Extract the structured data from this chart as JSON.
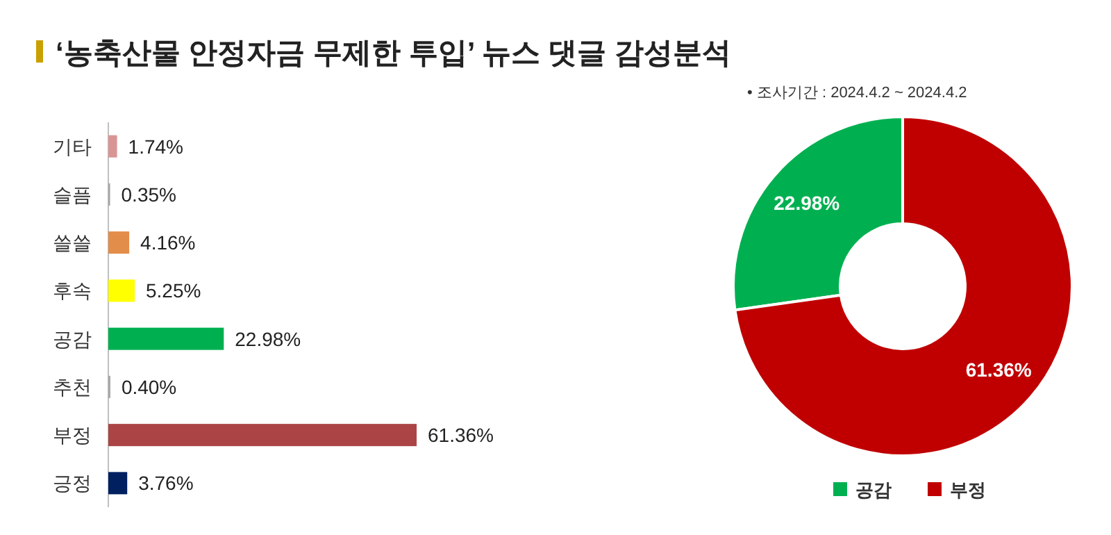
{
  "chart_data": [
    {
      "type": "bar",
      "orientation": "horizontal",
      "title": "‘농축산물 안정자금 무제한 투입’ 뉴스 댓글 감성분석",
      "categories": [
        "기타",
        "슬픔",
        "쓸쓸",
        "후속",
        "공감",
        "추천",
        "부정",
        "긍정"
      ],
      "values": [
        1.74,
        0.35,
        4.16,
        5.25,
        22.98,
        0.4,
        61.36,
        3.76
      ],
      "value_labels": [
        "1.74%",
        "0.35%",
        "4.16%",
        "5.25%",
        "22.98%",
        "0.40%",
        "61.36%",
        "3.76%"
      ],
      "colors": [
        "#d99594",
        "#a6a6a6",
        "#e38d4a",
        "#ffff00",
        "#00b050",
        "#a6a6a6",
        "#ab4545",
        "#002060"
      ]
    },
    {
      "type": "donut",
      "categories": [
        "공감",
        "부정"
      ],
      "values": [
        22.98,
        61.36
      ],
      "value_labels": [
        "22.98%",
        "61.36%"
      ],
      "colors": [
        "#00b050",
        "#c00000"
      ],
      "legend": "bottom",
      "annotations": [
        "•   조사기간 : 2024.4.2 ~ 2024.4.2"
      ]
    }
  ]
}
